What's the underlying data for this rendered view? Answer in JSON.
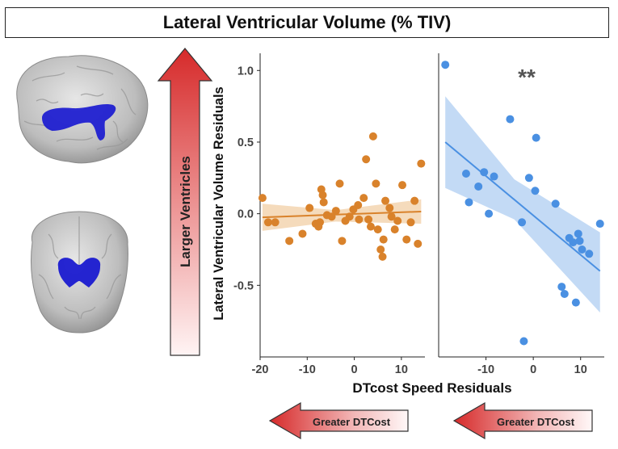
{
  "header": {
    "title": "Lateral Ventricular Volume (% TIV)"
  },
  "side_arrow": {
    "label": "Larger Ventricles"
  },
  "bottom_arrows": [
    {
      "label": "Greater DTCost"
    },
    {
      "label": "Greater DTCost"
    }
  ],
  "images": [
    {
      "name": "sagittal-brain",
      "description_icon": "brain-icon"
    },
    {
      "name": "coronal-brain",
      "description_icon": "brain-icon"
    }
  ],
  "colors": {
    "orange": "#D9822B",
    "blue": "#4A90E2",
    "blue_band": "#A9CBF1",
    "orange_band": "#F1CFA6",
    "arrow_red": "#D62A2A",
    "ventricle": "#1a1ad0"
  },
  "chart_data": [
    {
      "type": "scatter",
      "panel": "left",
      "title": "",
      "xlabel": "DTcost Speed Residuals",
      "ylabel": "Lateral Ventricular Volume Residuals",
      "xlim": [
        -20,
        15
      ],
      "ylim": [
        -1.0,
        1.12
      ],
      "xticks": [
        -20,
        -10,
        0,
        10
      ],
      "xtick_labels": [
        "-20",
        "-10",
        "0",
        "10"
      ],
      "yticks": [
        -0.5,
        0.0,
        0.5,
        1.0
      ],
      "ytick_labels": [
        "-0.5",
        "0.0",
        "0.5",
        "1.0"
      ],
      "series": [
        {
          "name": "left-group",
          "color": "#D9822B",
          "points": [
            [
              -19.5,
              0.11
            ],
            [
              -18.3,
              -0.06
            ],
            [
              -16.8,
              -0.06
            ],
            [
              -13.8,
              -0.19
            ],
            [
              -11.0,
              -0.14
            ],
            [
              -9.5,
              0.04
            ],
            [
              -8.2,
              -0.07
            ],
            [
              -7.6,
              -0.09
            ],
            [
              -7.3,
              -0.06
            ],
            [
              -7.0,
              0.17
            ],
            [
              -6.7,
              0.13
            ],
            [
              -6.5,
              0.08
            ],
            [
              -5.8,
              -0.01
            ],
            [
              -4.8,
              -0.02
            ],
            [
              -3.9,
              0.02
            ],
            [
              -3.1,
              0.21
            ],
            [
              -2.6,
              -0.19
            ],
            [
              -1.9,
              -0.05
            ],
            [
              -1.0,
              -0.02
            ],
            [
              -0.2,
              0.03
            ],
            [
              0.8,
              0.06
            ],
            [
              1.0,
              -0.04
            ],
            [
              2.0,
              0.11
            ],
            [
              2.5,
              0.38
            ],
            [
              3.0,
              -0.04
            ],
            [
              3.5,
              -0.09
            ],
            [
              4.0,
              0.54
            ],
            [
              4.6,
              0.21
            ],
            [
              5.0,
              -0.11
            ],
            [
              5.6,
              -0.25
            ],
            [
              6.0,
              -0.3
            ],
            [
              6.2,
              -0.18
            ],
            [
              6.6,
              0.09
            ],
            [
              7.5,
              0.04
            ],
            [
              7.9,
              -0.02
            ],
            [
              8.6,
              -0.11
            ],
            [
              9.2,
              -0.05
            ],
            [
              10.2,
              0.2
            ],
            [
              11.1,
              -0.18
            ],
            [
              12.0,
              -0.06
            ],
            [
              12.8,
              0.09
            ],
            [
              13.5,
              -0.21
            ],
            [
              14.2,
              0.35
            ]
          ],
          "fit_line": [
            [
              -19.5,
              -0.025
            ],
            [
              14.2,
              0.015
            ]
          ],
          "ci_band_upper": [
            [
              -19.5,
              0.07
            ],
            [
              -4.0,
              0.025
            ],
            [
              14.2,
              0.1
            ]
          ],
          "ci_band_lower": [
            [
              -19.5,
              -0.12
            ],
            [
              -4.0,
              -0.055
            ],
            [
              14.2,
              -0.07
            ]
          ]
        }
      ]
    },
    {
      "type": "scatter",
      "panel": "right",
      "title": "",
      "annotation": "**",
      "xlabel": "DTcost Speed Residuals",
      "ylabel": "",
      "xlim": [
        -20,
        15
      ],
      "ylim": [
        -1.0,
        1.12
      ],
      "xticks": [
        -10,
        0,
        10
      ],
      "xtick_labels": [
        "-10",
        "0",
        "10"
      ],
      "series": [
        {
          "name": "right-group",
          "color": "#4A90E2",
          "points": [
            [
              -18.6,
              1.04
            ],
            [
              -14.2,
              0.28
            ],
            [
              -13.6,
              0.08
            ],
            [
              -11.6,
              0.19
            ],
            [
              -10.4,
              0.29
            ],
            [
              -9.4,
              0.0
            ],
            [
              -8.3,
              0.26
            ],
            [
              -4.9,
              0.66
            ],
            [
              -2.4,
              -0.06
            ],
            [
              -0.9,
              0.25
            ],
            [
              0.4,
              0.16
            ],
            [
              0.6,
              0.53
            ],
            [
              -2.0,
              -0.89
            ],
            [
              4.7,
              0.07
            ],
            [
              6.0,
              -0.51
            ],
            [
              6.6,
              -0.56
            ],
            [
              7.6,
              -0.17
            ],
            [
              8.4,
              -0.2
            ],
            [
              9.0,
              -0.62
            ],
            [
              9.5,
              -0.14
            ],
            [
              9.8,
              -0.19
            ],
            [
              10.3,
              -0.25
            ],
            [
              11.8,
              -0.28
            ],
            [
              14.1,
              -0.07
            ]
          ],
          "fit_line": [
            [
              -18.6,
              0.5
            ],
            [
              14.1,
              -0.4
            ]
          ],
          "ci_band_upper": [
            [
              -18.6,
              0.82
            ],
            [
              -4.0,
              0.24
            ],
            [
              14.1,
              -0.13
            ]
          ],
          "ci_band_lower": [
            [
              -18.6,
              0.18
            ],
            [
              -4.0,
              -0.04
            ],
            [
              14.1,
              -0.69
            ]
          ]
        }
      ]
    }
  ]
}
